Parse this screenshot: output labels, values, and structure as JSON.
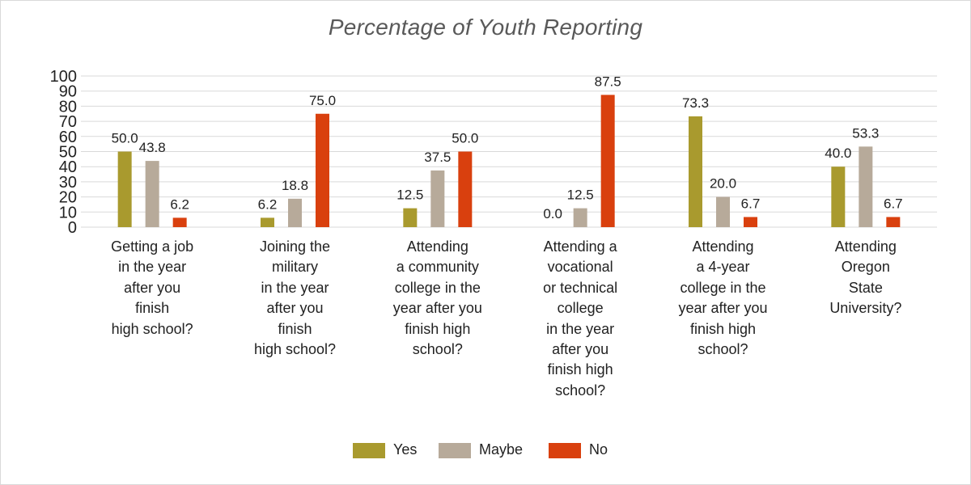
{
  "chart_data": {
    "type": "bar",
    "title": "Percentage of Youth Reporting",
    "xlabel": "",
    "ylabel": "",
    "ylim": [
      0,
      100
    ],
    "yticks": [
      0,
      10,
      20,
      30,
      40,
      50,
      60,
      70,
      80,
      90,
      100
    ],
    "grid": true,
    "legend_position": "bottom",
    "categories": [
      "Getting a job\nin the year\nafter you\nfinish\nhigh school?",
      "Joining the\nmilitary\nin the year\nafter you\nfinish\nhigh school?",
      "Attending\na community\ncollege in the\nyear after you\nfinish high\nschool?",
      "Attending a\nvocational\nor technical\ncollege\nin the year\nafter you\nfinish high\nschool?",
      "Attending\na 4-year\ncollege in the\nyear after you\nfinish high\nschool?",
      "Attending\nOregon\nState\nUniversity?"
    ],
    "series": [
      {
        "name": "Yes",
        "color": "#a99a2e",
        "values": [
          50.0,
          6.2,
          12.5,
          0.0,
          73.3,
          40.0
        ]
      },
      {
        "name": "Maybe",
        "color": "#b7aa9a",
        "values": [
          43.8,
          18.8,
          37.5,
          12.5,
          20.0,
          53.3
        ]
      },
      {
        "name": "No",
        "color": "#d9400e",
        "values": [
          6.2,
          75.0,
          50.0,
          87.5,
          6.7,
          6.7
        ]
      }
    ]
  }
}
